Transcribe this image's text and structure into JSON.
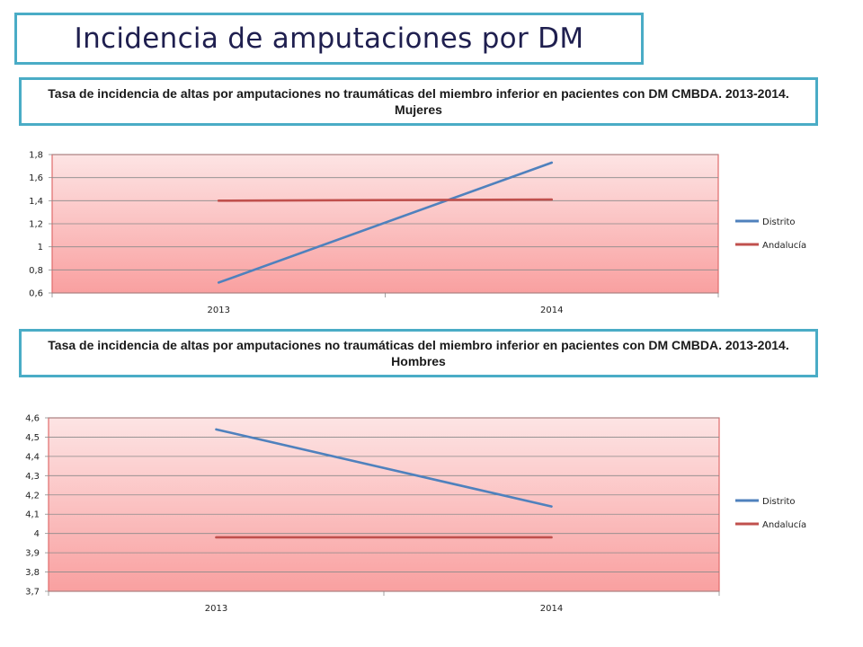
{
  "page": {
    "title": "Incidencia de amputaciones por DM"
  },
  "chart_data": [
    {
      "type": "line",
      "title": "Tasa de incidencia de altas por amputaciones no traumáticas del miembro inferior en pacientes con DM CMBDA. 2013-2014. Mujeres",
      "categories": [
        "2013",
        "2014"
      ],
      "series": [
        {
          "name": "Distrito",
          "values": [
            0.69,
            1.73
          ],
          "color": "#4f81bd"
        },
        {
          "name": "Andalucía",
          "values": [
            1.4,
            1.41
          ],
          "color": "#c0504d"
        }
      ],
      "ylim": [
        0.6,
        1.8
      ],
      "yticks": [
        "0,6",
        "0,8",
        "1",
        "1,2",
        "1,4",
        "1,6",
        "1,8"
      ],
      "ytick_values": [
        0.6,
        0.8,
        1.0,
        1.2,
        1.4,
        1.6,
        1.8
      ],
      "grid": true,
      "legend": "right",
      "plot_background": "pink-gradient"
    },
    {
      "type": "line",
      "title": "Tasa de incidencia de altas por amputaciones no traumáticas del miembro inferior en pacientes con DM CMBDA. 2013-2014. Hombres",
      "categories": [
        "2013",
        "2014"
      ],
      "series": [
        {
          "name": "Distrito",
          "values": [
            4.54,
            4.14
          ],
          "color": "#4f81bd"
        },
        {
          "name": "Andalucía",
          "values": [
            3.98,
            3.98
          ],
          "color": "#c0504d"
        }
      ],
      "ylim": [
        3.7,
        4.6
      ],
      "yticks": [
        "3,7",
        "3,8",
        "3,9",
        "4",
        "4,1",
        "4,2",
        "4,3",
        "4,4",
        "4,5",
        "4,6"
      ],
      "ytick_values": [
        3.7,
        3.8,
        3.9,
        4.0,
        4.1,
        4.2,
        4.3,
        4.4,
        4.5,
        4.6
      ],
      "grid": true,
      "legend": "right",
      "plot_background": "pink-gradient"
    }
  ]
}
